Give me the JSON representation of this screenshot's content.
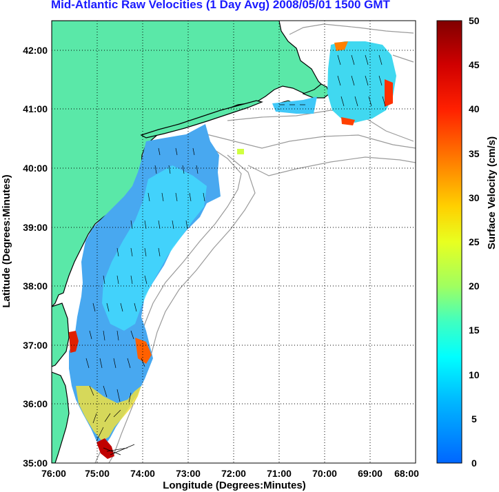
{
  "title": "Mid-Atlantic Raw Velocities (1 Day Avg) 2008/05/01 1500 GMT",
  "xlabel": "Longitude (Degrees:Minutes)",
  "ylabel": "Latitude (Degrees:Minutes)",
  "x_ticks": [
    "76:00",
    "75:00",
    "74:00",
    "73:00",
    "72:00",
    "71:00",
    "70:00",
    "69:00",
    "68:00"
  ],
  "y_ticks": [
    "42:00",
    "41:00",
    "40:00",
    "39:00",
    "38:00",
    "37:00",
    "36:00",
    "35:00"
  ],
  "colorbar": {
    "label": "Surface Velocity (cm/s)",
    "ticks": [
      "50",
      "45",
      "40",
      "35",
      "30",
      "25",
      "20",
      "15",
      "10",
      "5",
      "0"
    ],
    "range": [
      0,
      50
    ],
    "colormap": [
      "#0070ff",
      "#00d8ff",
      "#40ffb8",
      "#d0ff30",
      "#ffd000",
      "#ff6000",
      "#e00000",
      "#900000"
    ]
  },
  "colors": {
    "land": "#5ae8a8",
    "coast": "#000000",
    "bathymetry": "#9a9a9a",
    "grid": "#000000",
    "title": "#1a1aff"
  }
}
